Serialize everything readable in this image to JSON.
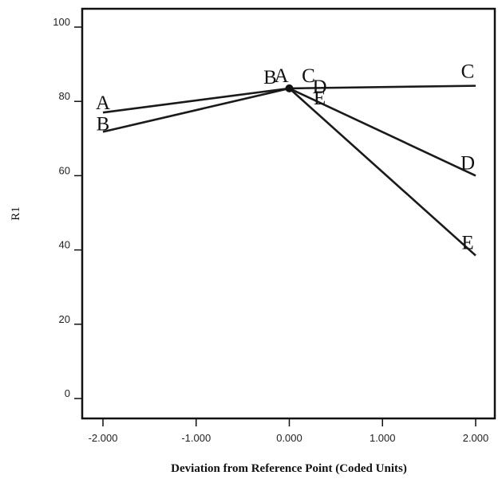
{
  "chart_data": {
    "type": "line",
    "xlabel": "Deviation from Reference Point (Coded Units)",
    "ylabel": "R1",
    "xlim": [
      -2.0,
      2.0
    ],
    "ylim": [
      0,
      100
    ],
    "xticks": [
      "-2.000",
      "-1.000",
      "0.000",
      "1.000",
      "2.000"
    ],
    "yticks": [
      "0",
      "20",
      "40",
      "60",
      "80",
      "100"
    ],
    "reference_point": {
      "x": 0.0,
      "y": 83.5
    },
    "series": [
      {
        "name": "A",
        "x": [
          -2.0,
          0.0
        ],
        "y": [
          77.0,
          83.5
        ]
      },
      {
        "name": "B",
        "x": [
          -2.0,
          0.0
        ],
        "y": [
          71.8,
          83.5
        ]
      },
      {
        "name": "C",
        "x": [
          0.0,
          2.0
        ],
        "y": [
          83.5,
          84.2
        ]
      },
      {
        "name": "D",
        "x": [
          0.0,
          2.0
        ],
        "y": [
          83.5,
          60.0
        ]
      },
      {
        "name": "E",
        "x": [
          0.0,
          2.0
        ],
        "y": [
          83.5,
          38.5
        ]
      }
    ]
  }
}
